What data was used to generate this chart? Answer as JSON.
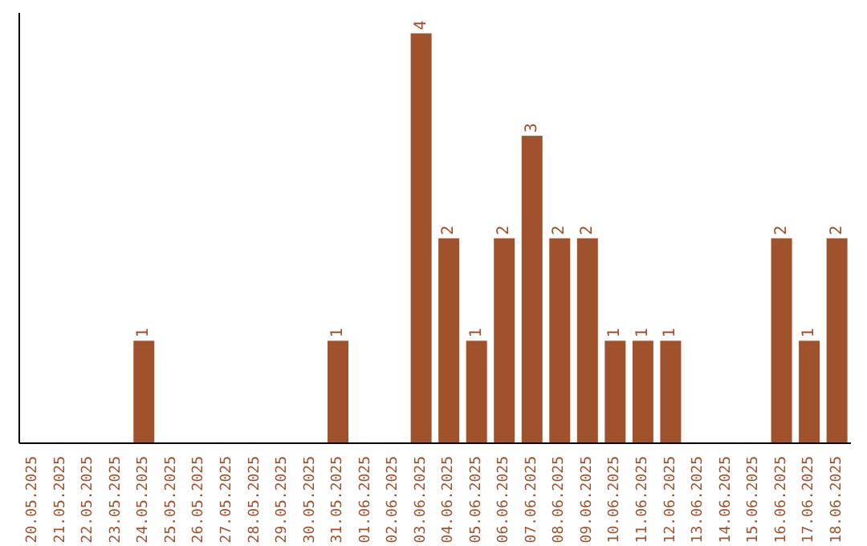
{
  "chart_data": {
    "type": "bar",
    "categories": [
      "20.05.2025",
      "21.05.2025",
      "22.05.2025",
      "23.05.2025",
      "24.05.2025",
      "25.05.2025",
      "26.05.2025",
      "27.05.2025",
      "28.05.2025",
      "29.05.2025",
      "30.05.2025",
      "31.05.2025",
      "01.06.2025",
      "02.06.2025",
      "03.06.2025",
      "04.06.2025",
      "05.06.2025",
      "06.06.2025",
      "07.06.2025",
      "08.06.2025",
      "09.06.2025",
      "10.06.2025",
      "11.06.2025",
      "12.06.2025",
      "13.06.2025",
      "14.06.2025",
      "15.06.2025",
      "16.06.2025",
      "17.06.2025",
      "18.06.2025"
    ],
    "values": [
      0,
      0,
      0,
      0,
      1,
      0,
      0,
      0,
      0,
      0,
      0,
      1,
      0,
      0,
      4,
      2,
      1,
      2,
      3,
      2,
      2,
      1,
      1,
      1,
      0,
      0,
      0,
      2,
      1,
      2
    ],
    "value_labels": [
      null,
      null,
      null,
      null,
      "1",
      null,
      null,
      null,
      null,
      null,
      null,
      "1",
      null,
      null,
      "4",
      "2",
      "1",
      "2",
      "3",
      "2",
      "2",
      "1",
      "1",
      "1",
      null,
      null,
      null,
      "2",
      "1",
      "2"
    ],
    "color": "#a0522d",
    "relative": false,
    "grid": false,
    "legend": false
  }
}
